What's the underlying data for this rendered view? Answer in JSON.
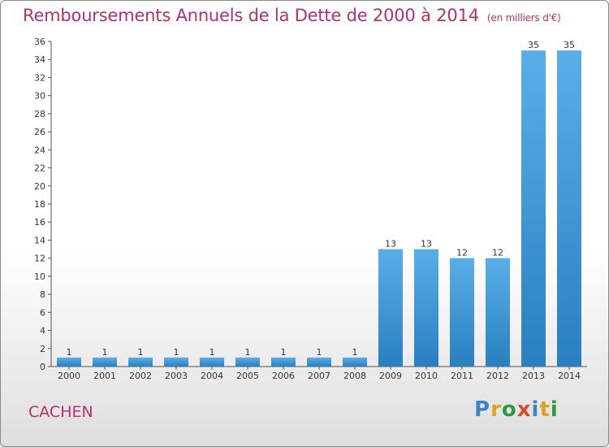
{
  "title": "Remboursements Annuels de la Dette de 2000 à 2014",
  "unit_note": "(en milliers d'€)",
  "commune": "CACHEN",
  "logo": {
    "text": "Proxiti",
    "colors": [
      "#3a86c8",
      "#e0a21b",
      "#2a9c3a",
      "#d94a2a",
      "#3a86c8",
      "#e0a21b",
      "#2a9c3a"
    ]
  },
  "colors": {
    "title": "#b5306b",
    "bar_light": "#5aaee8",
    "bar_dark": "#2a7fc0"
  },
  "chart_data": {
    "type": "bar",
    "categories": [
      "2000",
      "2001",
      "2002",
      "2003",
      "2004",
      "2005",
      "2006",
      "2007",
      "2008",
      "2009",
      "2010",
      "2011",
      "2012",
      "2013",
      "2014"
    ],
    "values": [
      1,
      1,
      1,
      1,
      1,
      1,
      1,
      1,
      1,
      13,
      13,
      12,
      12,
      35,
      35
    ],
    "ylim": [
      0,
      36
    ],
    "yticks": [
      0,
      2,
      4,
      6,
      8,
      10,
      12,
      14,
      16,
      18,
      20,
      22,
      24,
      26,
      28,
      30,
      32,
      34,
      36
    ],
    "xlabel": "",
    "ylabel": "",
    "grid": false
  }
}
